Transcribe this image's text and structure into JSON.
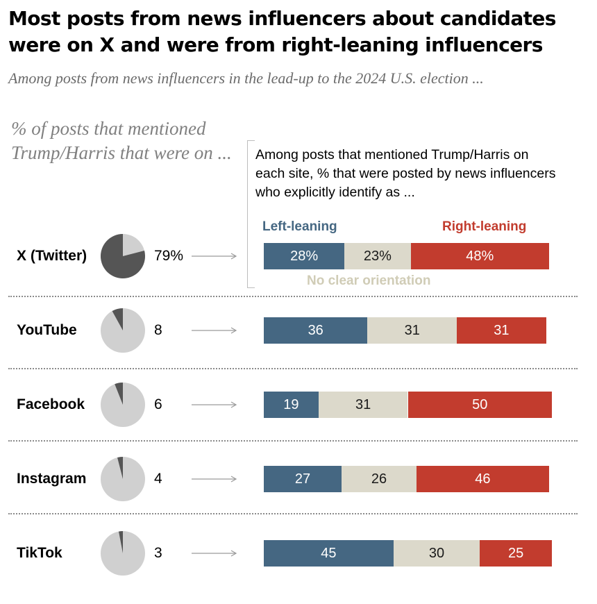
{
  "title": "Most posts from news influencers about candidates were on X and were from right-leaning influencers",
  "subtitle": "Among posts from news influencers in the lead-up to the 2024 U.S. election ...",
  "pie_header": "% of posts that mentioned Trump/Harris that were on ...",
  "bar_header": "Among posts that mentioned Trump/Harris on each site, % that were posted by news influencers who explicitly identify as ...",
  "legend": {
    "left": "Left-leaning",
    "right": "Right-leaning",
    "neutral": "No clear orientation"
  },
  "colors": {
    "left": "#456782",
    "neutral": "#dcd9cb",
    "right": "#c23c2e",
    "pie_fill": "#555555",
    "pie_base": "#d0d0d0"
  },
  "chart_data": [
    {
      "type": "pie",
      "title": "% of posts that mentioned Trump/Harris that were on ...",
      "categories": [
        "X (Twitter)",
        "YouTube",
        "Facebook",
        "Instagram",
        "TikTok"
      ],
      "values": [
        79,
        8,
        6,
        4,
        3
      ],
      "value_labels": [
        "79%",
        "8",
        "6",
        "4",
        "3"
      ]
    },
    {
      "type": "bar",
      "orientation": "horizontal",
      "stacked": true,
      "title": "Among posts that mentioned Trump/Harris on each site, % that were posted by news influencers who explicitly identify as ...",
      "categories": [
        "X (Twitter)",
        "YouTube",
        "Facebook",
        "Instagram",
        "TikTok"
      ],
      "series": [
        {
          "name": "Left-leaning",
          "values": [
            28,
            36,
            19,
            27,
            45
          ],
          "labels": [
            "28%",
            "36",
            "19",
            "27",
            "45"
          ]
        },
        {
          "name": "No clear orientation",
          "values": [
            23,
            31,
            31,
            26,
            30
          ],
          "labels": [
            "23%",
            "31",
            "31",
            "26",
            "30"
          ]
        },
        {
          "name": "Right-leaning",
          "values": [
            48,
            31,
            50,
            46,
            25
          ],
          "labels": [
            "48%",
            "31",
            "50",
            "46",
            "25"
          ]
        }
      ],
      "xlim": [
        0,
        100
      ],
      "legend": "top"
    }
  ]
}
